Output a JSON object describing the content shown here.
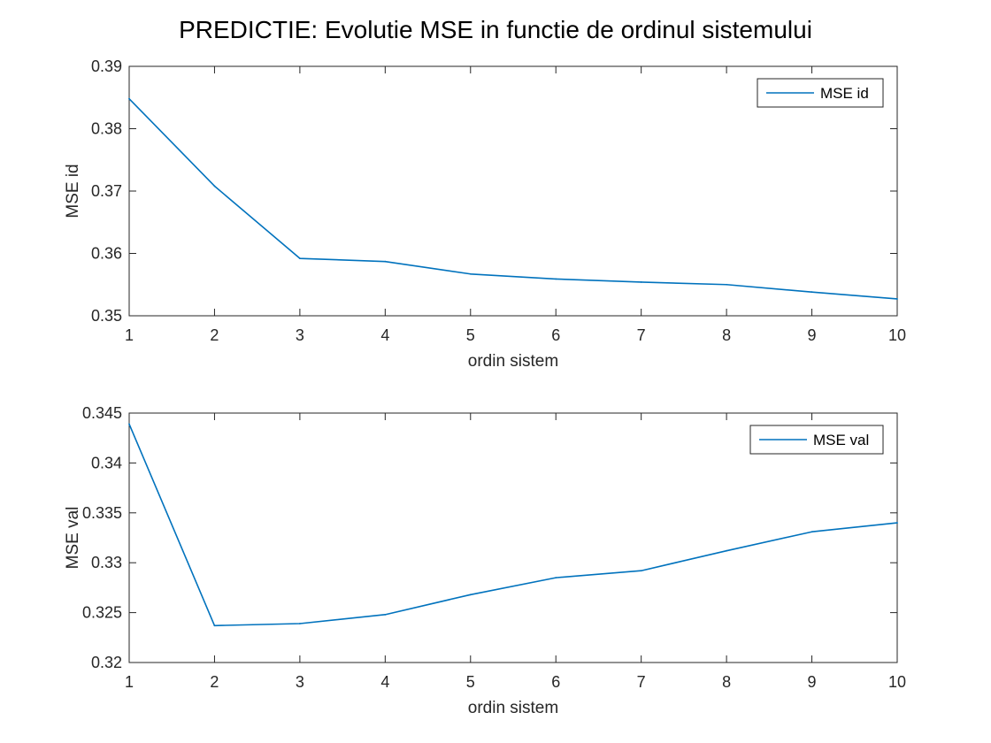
{
  "figure_title": "PREDICTIE: Evolutie MSE in functie de ordinul sistemului",
  "colors": {
    "series": "#0072BD",
    "axis": "#262626",
    "background": "#ffffff"
  },
  "chart_data": [
    {
      "type": "line",
      "x": [
        1,
        2,
        3,
        4,
        5,
        6,
        7,
        8,
        9,
        10
      ],
      "series": [
        {
          "name": "MSE id",
          "values": [
            0.3848,
            0.3708,
            0.3592,
            0.3587,
            0.3567,
            0.3559,
            0.3554,
            0.355,
            0.3538,
            0.3527
          ]
        }
      ],
      "xlabel": "ordin sistem",
      "ylabel": "MSE id",
      "xlim": [
        1,
        10
      ],
      "ylim": [
        0.35,
        0.39
      ],
      "xticks": [
        1,
        2,
        3,
        4,
        5,
        6,
        7,
        8,
        9,
        10
      ],
      "xtick_labels": [
        "1",
        "2",
        "3",
        "4",
        "5",
        "6",
        "7",
        "8",
        "9",
        "10"
      ],
      "yticks": [
        0.35,
        0.36,
        0.37,
        0.38,
        0.39
      ],
      "ytick_labels": [
        "0.35",
        "0.36",
        "0.37",
        "0.38",
        "0.39"
      ],
      "grid": false,
      "legend": "top-right"
    },
    {
      "type": "line",
      "x": [
        1,
        2,
        3,
        4,
        5,
        6,
        7,
        8,
        9,
        10
      ],
      "series": [
        {
          "name": "MSE val",
          "values": [
            0.3439,
            0.3237,
            0.3239,
            0.3248,
            0.3268,
            0.3285,
            0.3292,
            0.3312,
            0.3331,
            0.334
          ]
        }
      ],
      "xlabel": "ordin sistem",
      "ylabel": "MSE val",
      "xlim": [
        1,
        10
      ],
      "ylim": [
        0.32,
        0.345
      ],
      "xticks": [
        1,
        2,
        3,
        4,
        5,
        6,
        7,
        8,
        9,
        10
      ],
      "xtick_labels": [
        "1",
        "2",
        "3",
        "4",
        "5",
        "6",
        "7",
        "8",
        "9",
        "10"
      ],
      "yticks": [
        0.32,
        0.325,
        0.33,
        0.335,
        0.34,
        0.345
      ],
      "ytick_labels": [
        "0.32",
        "0.325",
        "0.33",
        "0.335",
        "0.34",
        "0.345"
      ],
      "grid": false,
      "legend": "top-right"
    }
  ]
}
